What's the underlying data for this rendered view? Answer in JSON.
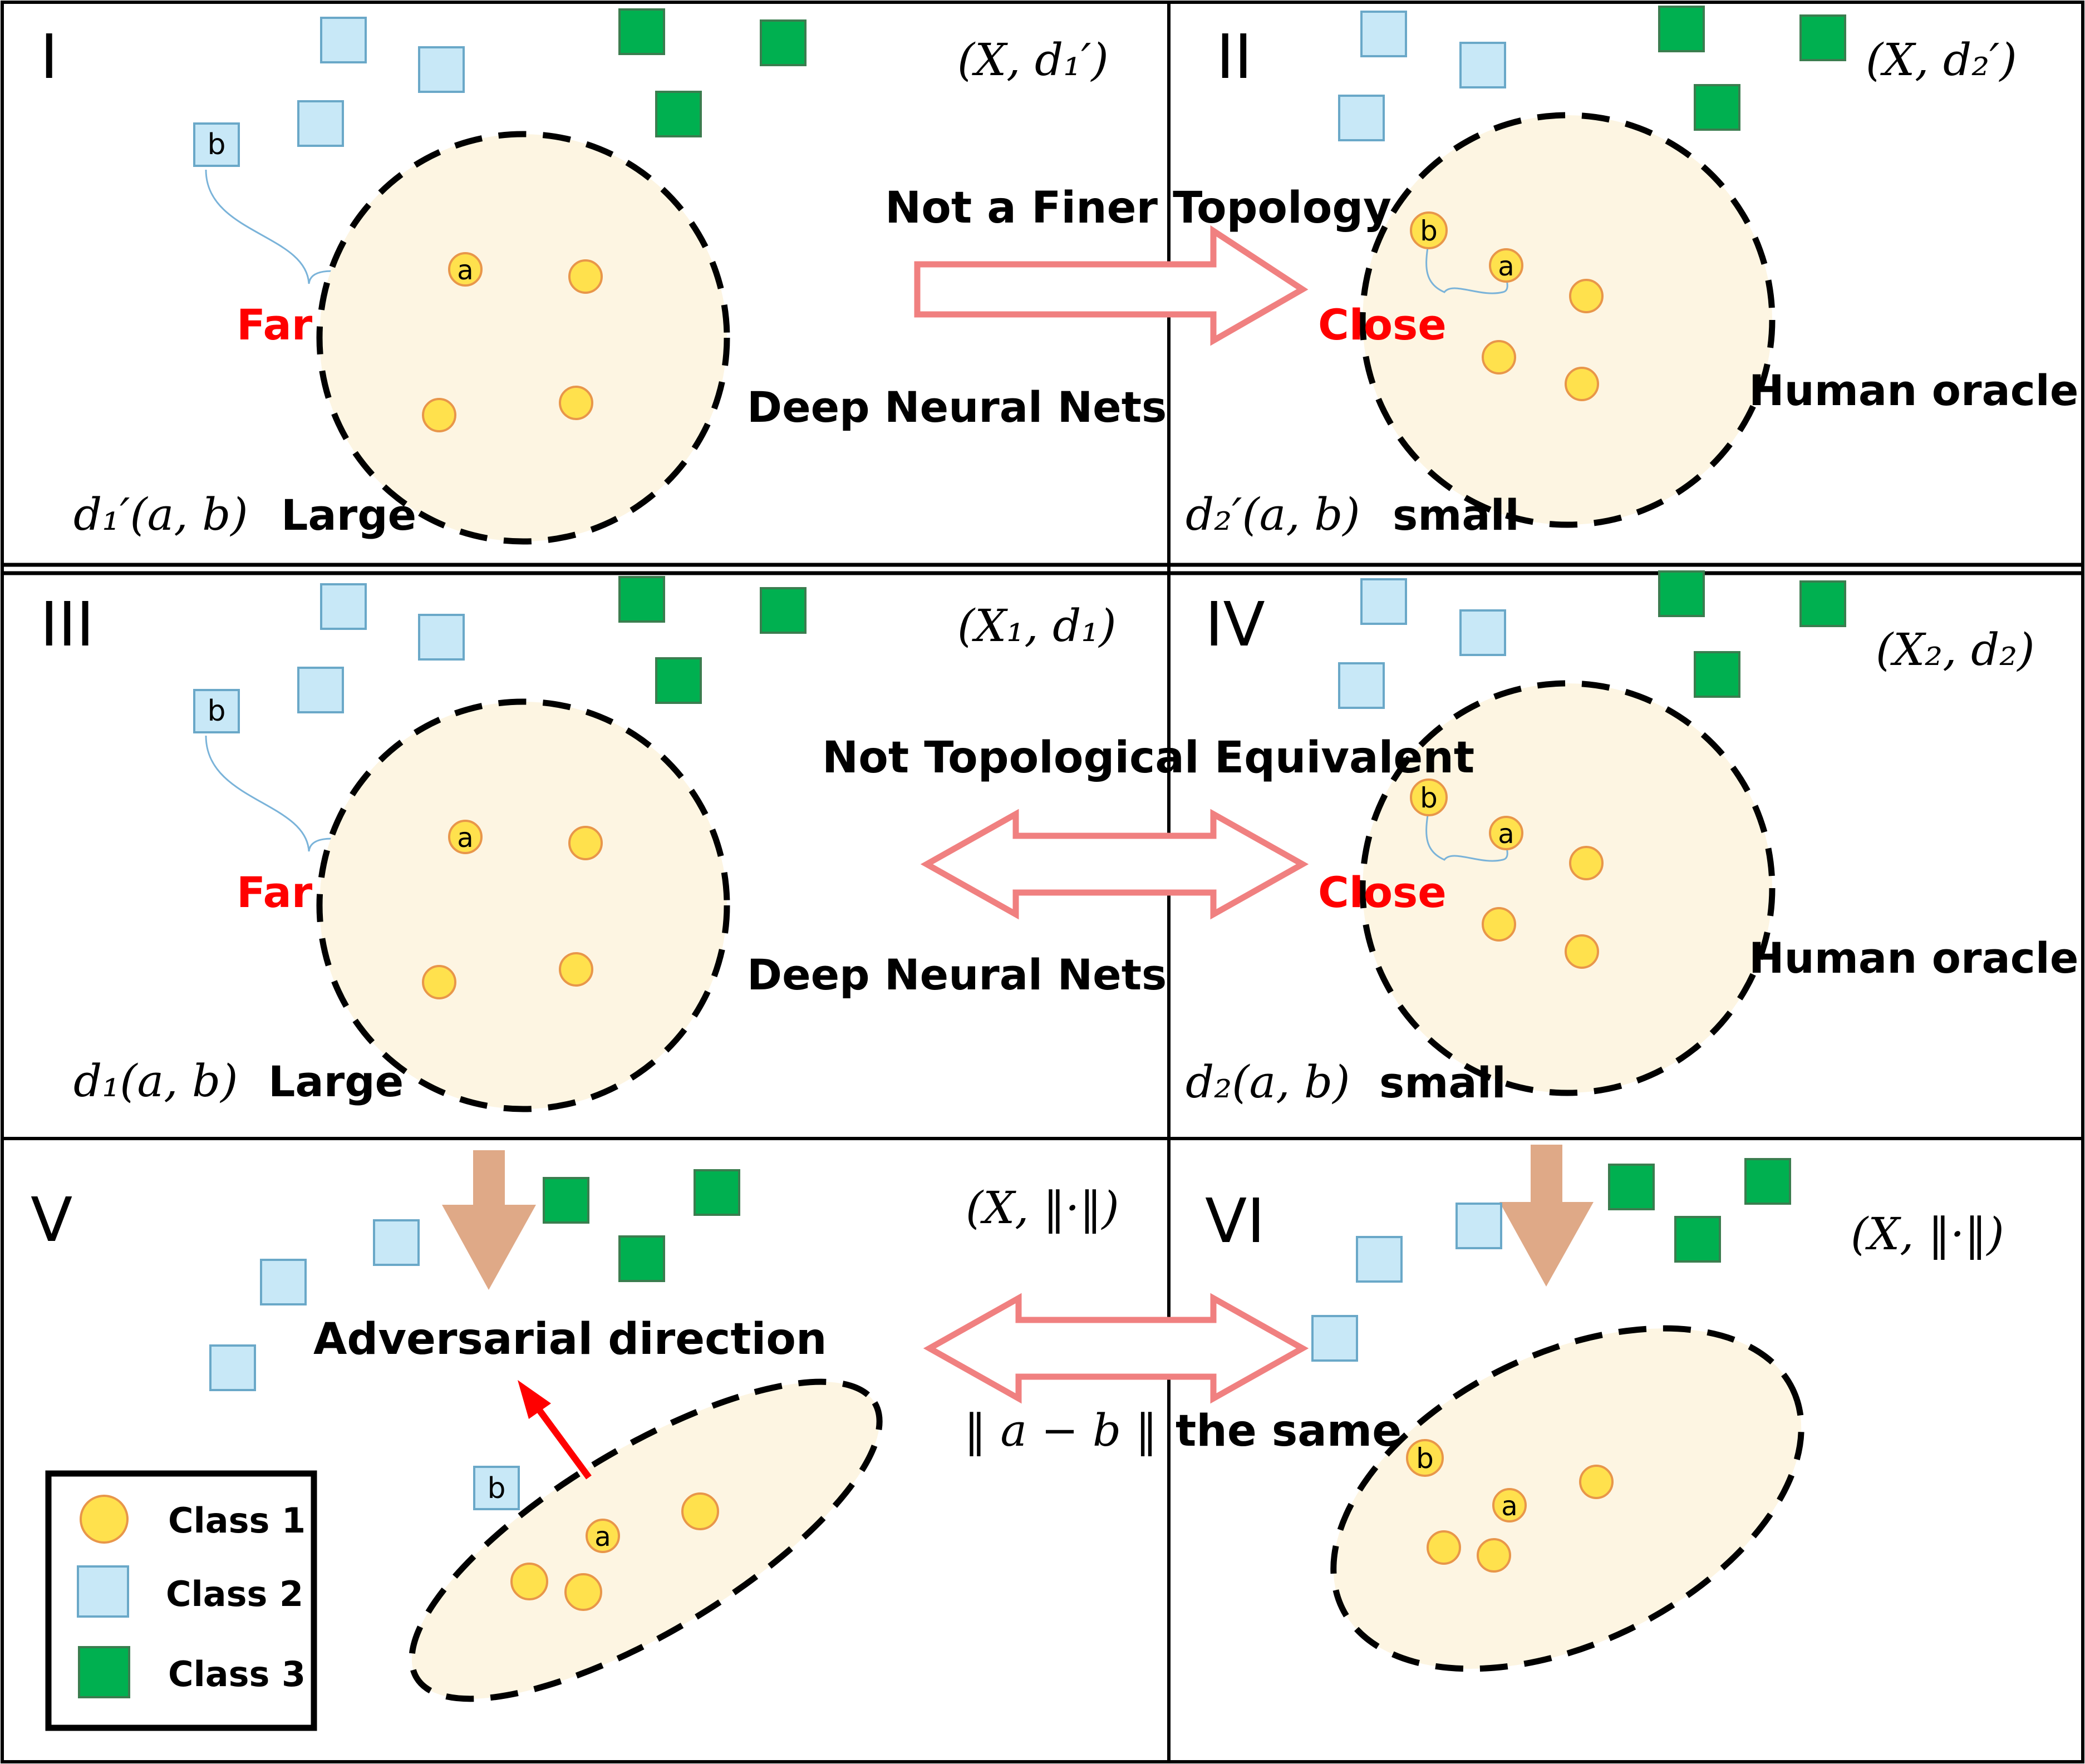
{
  "panels": {
    "I": {
      "numeral": "I",
      "space": "(X, d₁′)",
      "measure": "d₁′(a, b)",
      "size_word": "Large",
      "rel_word": "Far",
      "model": "Deep Neural Nets"
    },
    "II": {
      "numeral": "II",
      "space": "(X, d₂′)",
      "measure": "d₂′(a, b)",
      "size_word": "small",
      "rel_word": "Close",
      "model": "Human oracle"
    },
    "III": {
      "numeral": "III",
      "space": "(X₁, d₁)",
      "measure": "d₁(a, b)",
      "size_word": "Large",
      "rel_word": "Far",
      "model": "Deep Neural Nets"
    },
    "IV": {
      "numeral": "IV",
      "space": "(X₂, d₂)",
      "measure": "d₂(a, b)",
      "size_word": "small",
      "rel_word": "Close",
      "model": "Human oracle"
    },
    "V": {
      "numeral": "V",
      "space": "(X, ‖·‖)",
      "direction": "Adversarial direction"
    },
    "VI": {
      "numeral": "VI",
      "space": "(X, ‖·‖)"
    }
  },
  "relations": {
    "row1": "Not a Finer Topology",
    "row2": "Not Topological Equivalent",
    "row3_math": "‖ a − b ‖",
    "row3_text": "the same"
  },
  "point_labels": {
    "a": "a",
    "b": "b"
  },
  "legend": {
    "class1": "Class 1",
    "class2": "Class 2",
    "class3": "Class 3"
  },
  "colors": {
    "class1_fill": "#ffe14d",
    "class1_stroke": "#e8964a",
    "class2_fill": "#c8e8f7",
    "class2_stroke": "#6aa8c8",
    "class3_fill": "#00b050",
    "class3_stroke": "#3b7d4f",
    "region_fill": "#fdf5e2",
    "relation_arrow": "#f08080",
    "down_arrow": "#dfa987",
    "adversarial_arrow": "#ff0000",
    "leader_line": "#7ab3d9"
  }
}
